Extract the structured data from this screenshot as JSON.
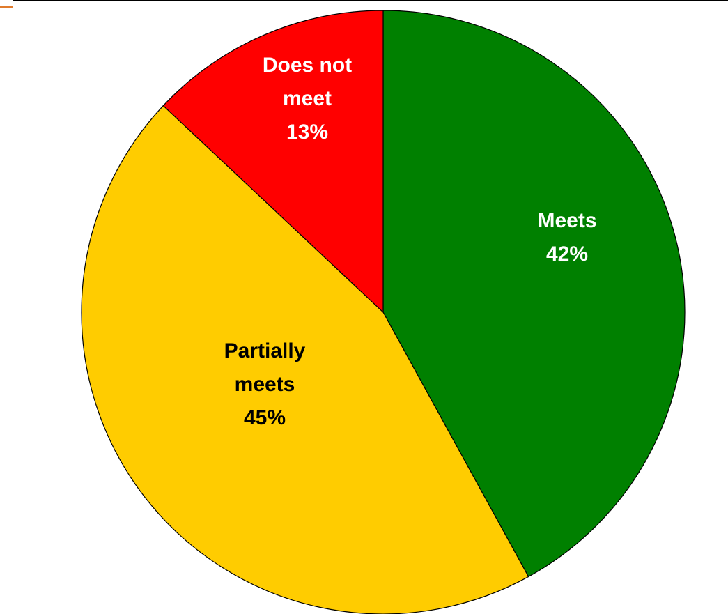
{
  "chart_data": {
    "type": "pie",
    "title": "",
    "slices": [
      {
        "label_lines": [
          "Meets"
        ],
        "value_label": "42%",
        "value": 42,
        "color": "#008000",
        "label_color": "#ffffff"
      },
      {
        "label_lines": [
          "Partially",
          "meets"
        ],
        "value_label": "45%",
        "value": 45,
        "color": "#ffcc00",
        "label_color": "#000000"
      },
      {
        "label_lines": [
          "Does not",
          "meet"
        ],
        "value_label": "13%",
        "value": 13,
        "color": "#ff0000",
        "label_color": "#ffffff"
      }
    ],
    "start_angle": "12 o'clock",
    "direction": "clockwise",
    "legend": "none"
  },
  "colors": {
    "background": "#ffffff",
    "outline": "#000000",
    "accent": "#e07b2c"
  }
}
